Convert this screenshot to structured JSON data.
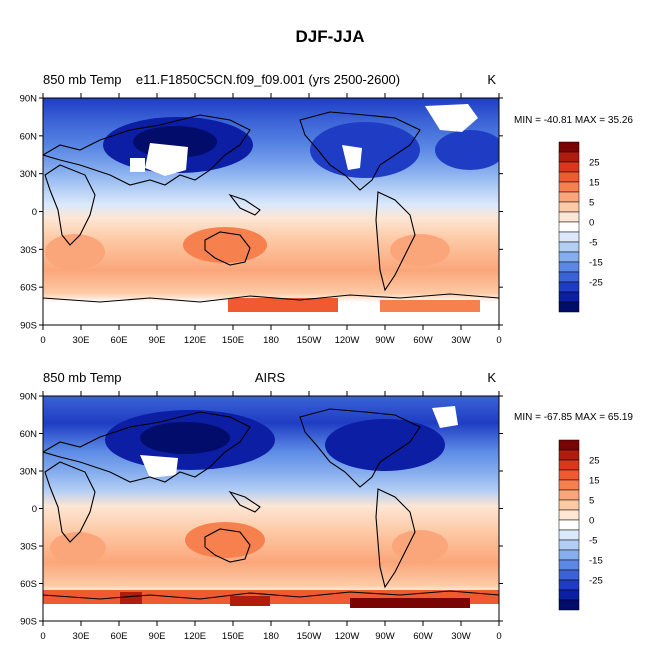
{
  "figure": {
    "title": "DJF-JJA"
  },
  "panels": [
    {
      "left_label": "850 mb Temp",
      "center_label": "e11.F1850C5CN.f09_f09.001 (yrs 2500-2600)",
      "units": "K",
      "stats": "MIN = -40.81 MAX =  35.26"
    },
    {
      "left_label": "850 mb Temp",
      "center_label": "AIRS",
      "units": "K",
      "stats": "MIN = -67.85 MAX =  65.19"
    }
  ],
  "axes": {
    "lat_ticks": [
      "90N",
      "60N",
      "30N",
      "0",
      "30S",
      "60S",
      "90S"
    ],
    "lon_ticks": [
      "0",
      "30E",
      "60E",
      "90E",
      "120E",
      "150E",
      "180",
      "150W",
      "120W",
      "90W",
      "60W",
      "30W",
      "0"
    ]
  },
  "colorbar": {
    "labels": [
      "25",
      "15",
      "5",
      "0",
      "-5",
      "-15",
      "-25"
    ],
    "colors": [
      "#7a0403",
      "#b01c0e",
      "#d9381c",
      "#ef5a30",
      "#f7804f",
      "#fba67a",
      "#fdcaa6",
      "#fde6d4",
      "#ffffff",
      "#dbe9fb",
      "#b3cef5",
      "#86adee",
      "#5a88e4",
      "#3b63d6",
      "#1f3dc4",
      "#0b1ea4",
      "#020c6b"
    ]
  },
  "colors": {
    "land_outline": "#000000",
    "missing": "#ffffff"
  }
}
